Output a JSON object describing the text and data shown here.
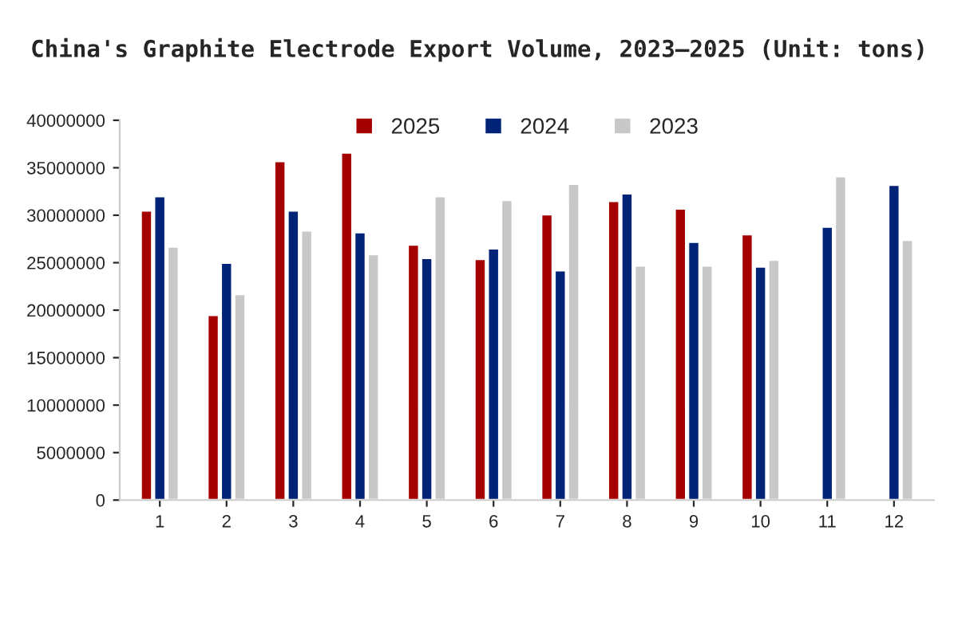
{
  "chart_data": {
    "type": "bar",
    "title": "China's Graphite Electrode Export Volume, 2023–2025 (Unit: tons)",
    "categories": [
      "1",
      "2",
      "3",
      "4",
      "5",
      "6",
      "7",
      "8",
      "9",
      "10",
      "11",
      "12"
    ],
    "series": [
      {
        "name": "2025",
        "color": "#a50000",
        "values": [
          30500000,
          19500000,
          35700000,
          36600000,
          26900000,
          25400000,
          30100000,
          31500000,
          30700000,
          28000000,
          null,
          null
        ]
      },
      {
        "name": "2024",
        "color": "#002377",
        "values": [
          32000000,
          25000000,
          30500000,
          28200000,
          25500000,
          26500000,
          24200000,
          32300000,
          27200000,
          24600000,
          28800000,
          33200000
        ]
      },
      {
        "name": "2023",
        "color": "#c8c8c8",
        "values": [
          26700000,
          21700000,
          28400000,
          25900000,
          32000000,
          31600000,
          33300000,
          24700000,
          24700000,
          25300000,
          34100000,
          27400000
        ]
      }
    ],
    "ylim": [
      0,
      40000000
    ],
    "yticks": [
      0,
      5000000,
      10000000,
      15000000,
      20000000,
      25000000,
      30000000,
      35000000,
      40000000
    ],
    "grid": false,
    "legend": "top"
  }
}
